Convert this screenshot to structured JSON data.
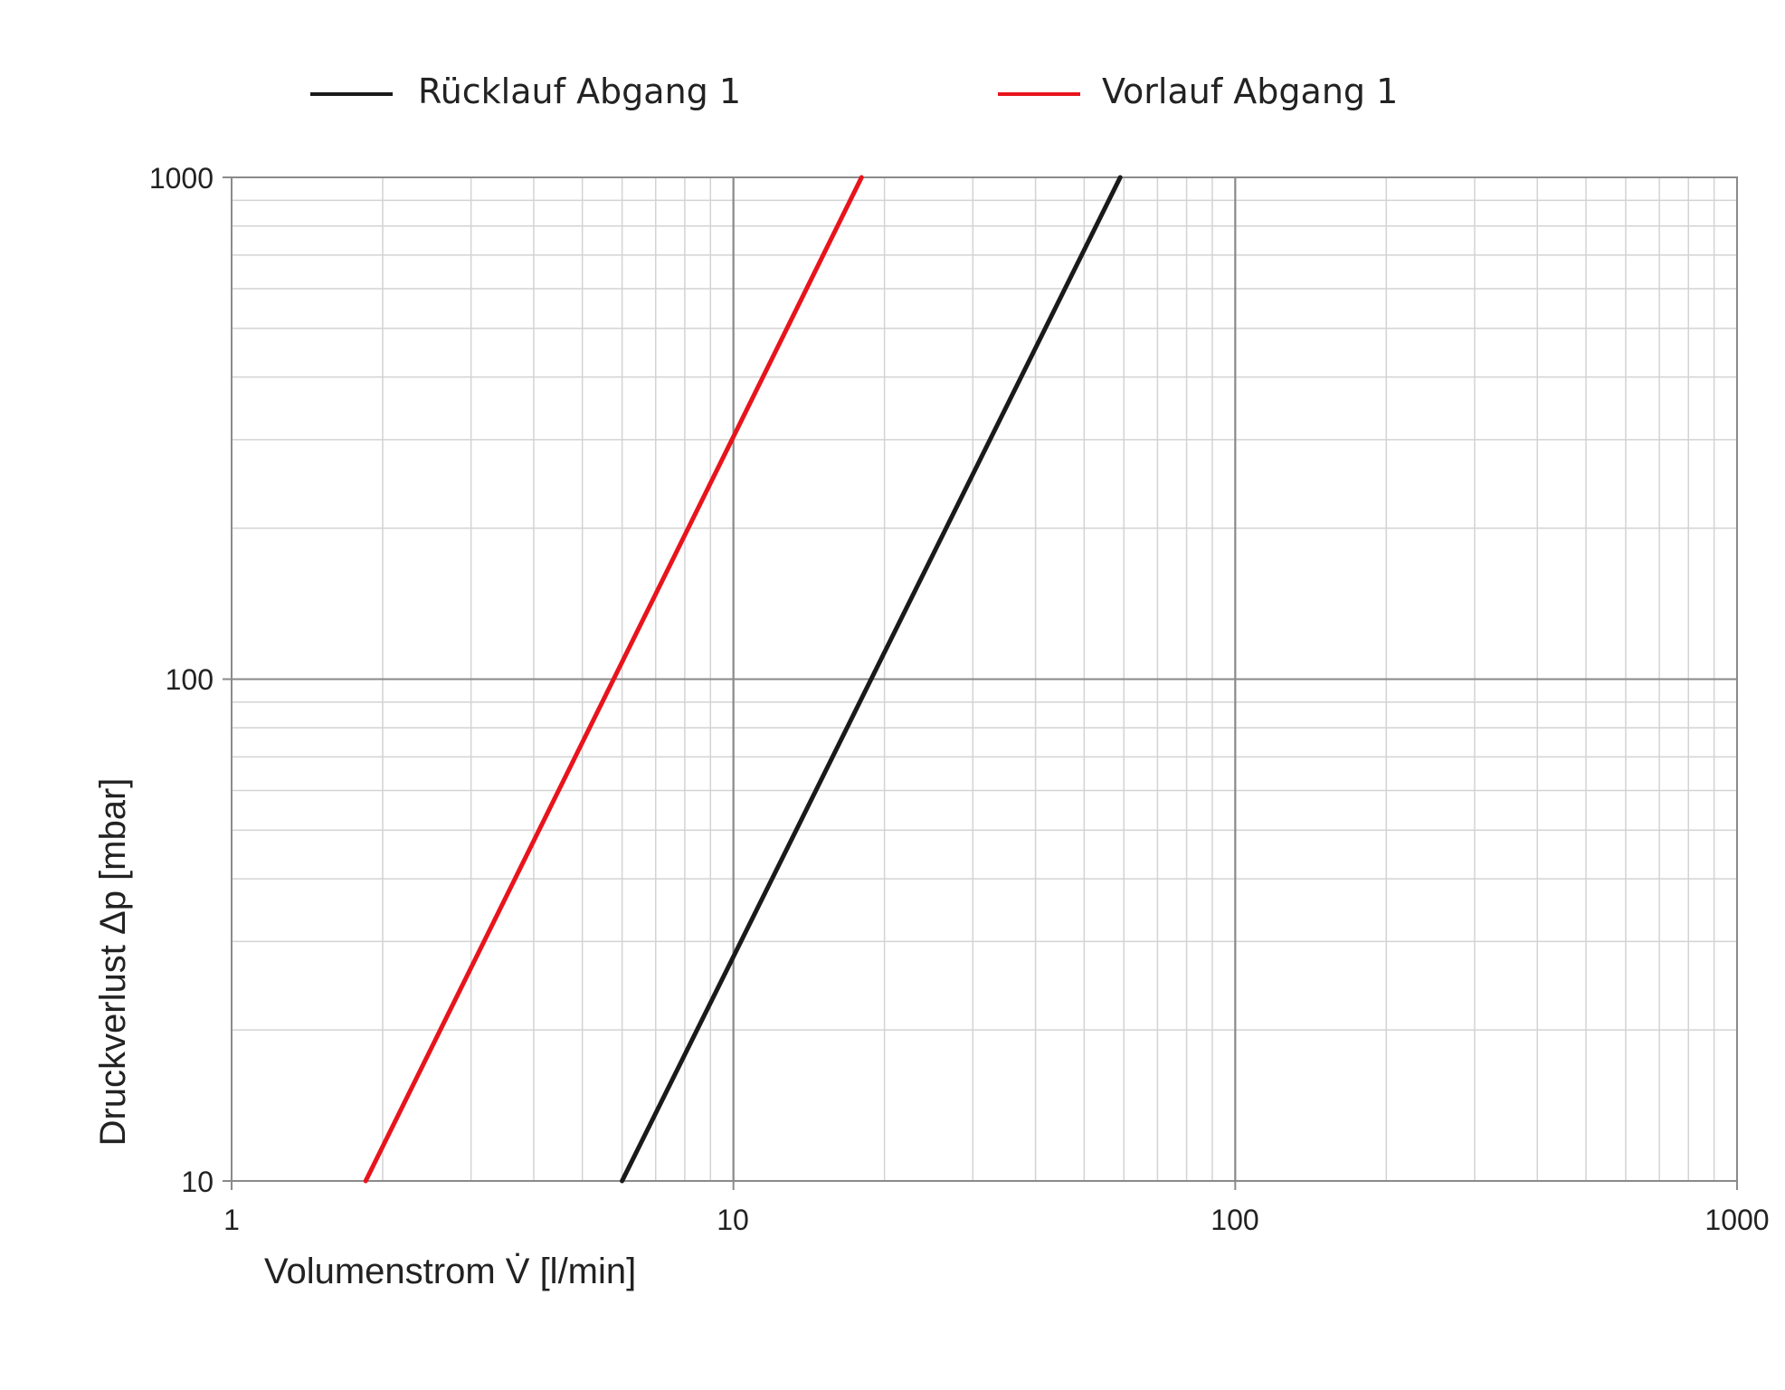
{
  "chart_data": {
    "type": "line",
    "xlabel": "Volumenstrom V̇ [l/min]",
    "ylabel": "Druckverlust Δp [mbar]",
    "x_scale": "log",
    "y_scale": "log",
    "xlim": [
      1,
      1000
    ],
    "ylim": [
      10,
      1000
    ],
    "x_ticks": [
      "1",
      "10",
      "100",
      "1000"
    ],
    "y_ticks": [
      "10",
      "100",
      "1000"
    ],
    "grid": true,
    "legend_position": "top",
    "series": [
      {
        "name": "Rücklauf Abgang 1",
        "color": "#1a1a1a",
        "x": [
          6.0,
          59.0
        ],
        "y": [
          10,
          1000
        ]
      },
      {
        "name": "Vorlauf Abgang 1",
        "color": "#e8141c",
        "x": [
          1.85,
          18.0
        ],
        "y": [
          10,
          1000
        ]
      }
    ]
  }
}
